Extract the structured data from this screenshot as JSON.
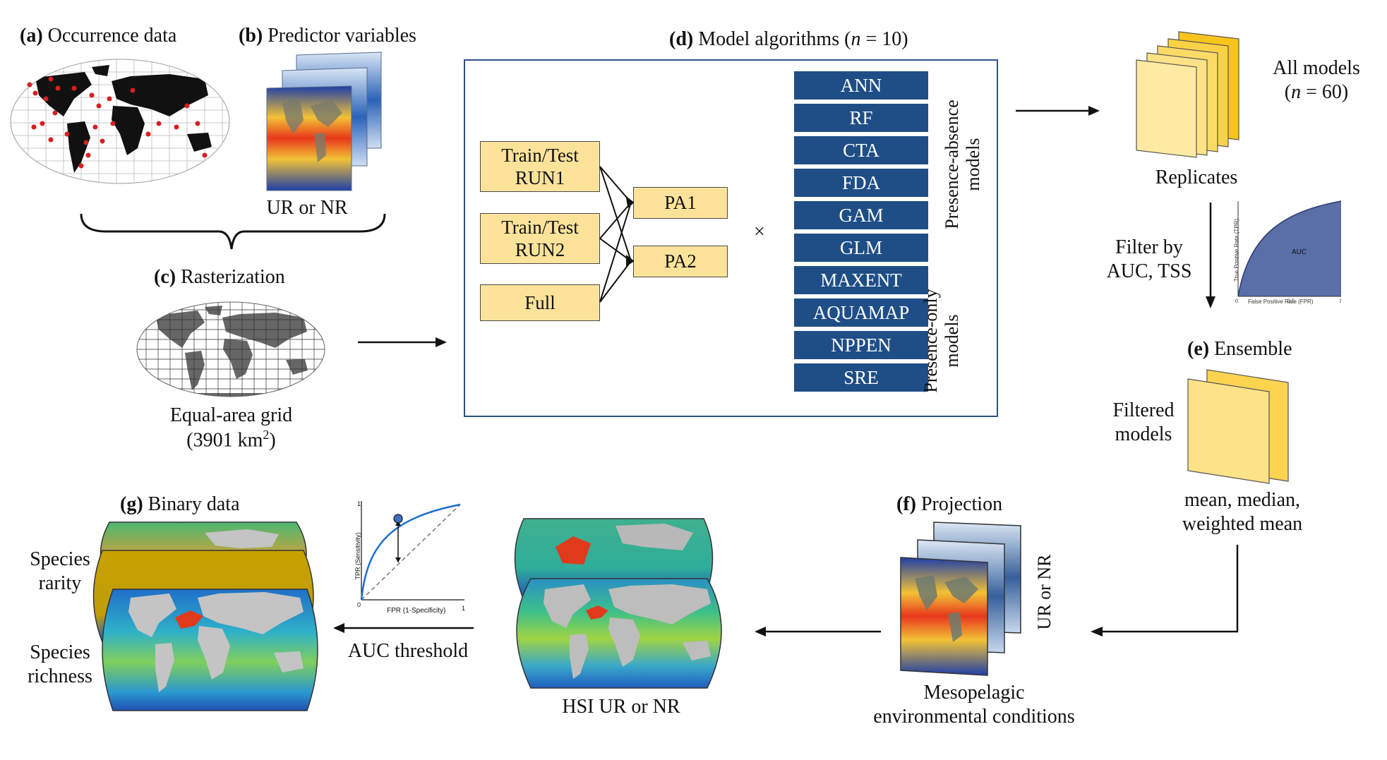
{
  "panel_a": {
    "letter": "(a)",
    "title": "Occurrence data"
  },
  "panel_b": {
    "letter": "(b)",
    "title": "Predictor variables",
    "caption": "UR or NR"
  },
  "panel_c": {
    "letter": "(c)",
    "title": "Rasterization",
    "caption_line1": "Equal-area grid",
    "caption_line2": "(3901 km",
    "caption_sup": "2",
    "caption_end": ")"
  },
  "panel_d": {
    "letter": "(d)",
    "title": "Model algorithms (",
    "n_expr": "n",
    "n_rest": " = 10)",
    "runs": [
      "Train/Test RUN1",
      "Train/Test RUN2",
      "Full"
    ],
    "pa": [
      "PA1",
      "PA2"
    ],
    "times": "×",
    "algorithms": [
      "ANN",
      "RF",
      "CTA",
      "FDA",
      "GAM",
      "GLM",
      "MAXENT",
      "AQUAMAP",
      "NPPEN",
      "SRE"
    ],
    "group_pa": "Presence-absence models",
    "group_po": "Presence-only models"
  },
  "all_models": {
    "label": "All models",
    "n_expr": "n",
    "n_rest": " = 60)",
    "open": "(",
    "replicates": "Replicates"
  },
  "filter": {
    "line1": "Filter by",
    "line2": "AUC, TSS"
  },
  "roc_small": {
    "ylabel": "True Positive Rate (TPR)",
    "xlabel": "False Positive Rate (FPR)",
    "area_label": "AUC",
    "ticks": [
      "0",
      "0.5",
      "1"
    ]
  },
  "panel_e": {
    "letter": "(e)",
    "title": "Ensemble",
    "filtered_line1": "Filtered",
    "filtered_line2": "models",
    "stats_line1": "mean, median,",
    "stats_line2": "weighted mean"
  },
  "panel_f": {
    "letter": "(f)",
    "title": "Projection",
    "side": "UR or NR",
    "caption_line1": "Mesopelagic",
    "caption_line2": "environmental conditions"
  },
  "hsi": {
    "caption": "HSI UR or NR"
  },
  "roc_threshold": {
    "ylabel": "TPR (Sensitivity)",
    "xlabel": "FPR (1-Specificity)",
    "one_y": "1",
    "zero": "0",
    "one_x": "1",
    "caption": "AUC threshold"
  },
  "panel_g": {
    "letter": "(g)",
    "title": "Binary data",
    "rarity_line1": "Species",
    "rarity_line2": "rarity",
    "richness_line1": "Species",
    "richness_line2": "richness"
  },
  "colors": {
    "box_fill": "#fde39a",
    "algo_fill": "#1f4e87",
    "frame": "#2f4f8a",
    "land_black": "#111111",
    "occurrence": "#d62020"
  }
}
